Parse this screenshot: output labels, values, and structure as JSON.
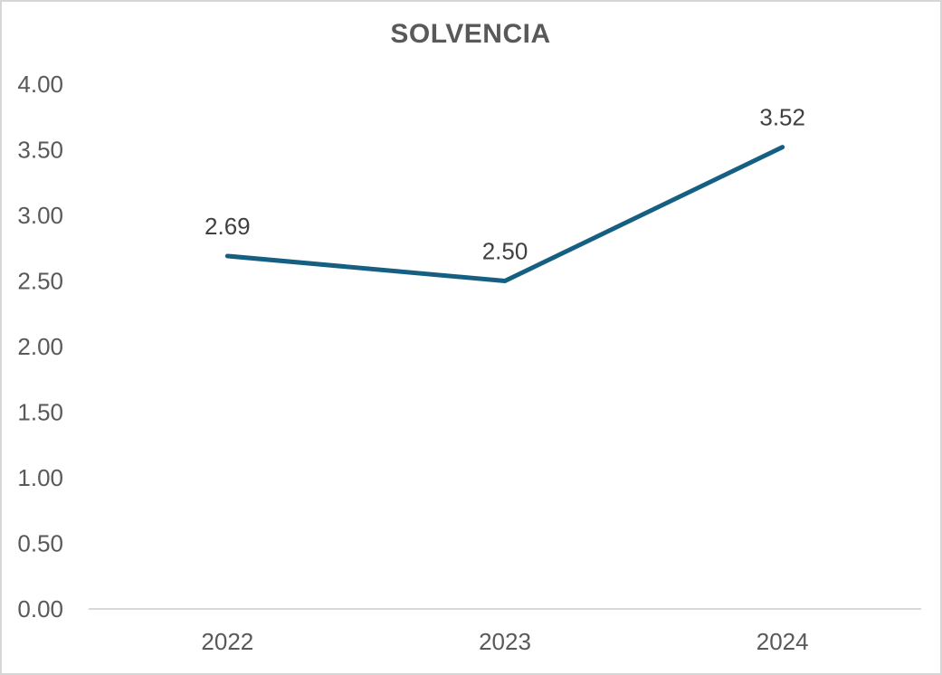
{
  "chart_data": {
    "type": "line",
    "title": "SOLVENCIA",
    "categories": [
      "2022",
      "2023",
      "2024"
    ],
    "series": [
      {
        "name": "SOLVENCIA",
        "values": [
          2.69,
          2.5,
          3.52
        ]
      }
    ],
    "data_labels": [
      "2.69",
      "2.50",
      "3.52"
    ],
    "y_ticks": [
      "4.00",
      "3.50",
      "3.00",
      "2.50",
      "2.00",
      "1.50",
      "1.00",
      "0.50",
      "0.00"
    ],
    "ylim": [
      0,
      4
    ],
    "y_step": 0.5,
    "xlabel": "",
    "ylabel": "",
    "grid": "off",
    "legend": "none",
    "markers": "none",
    "colors": {
      "line": "#156082",
      "axis_line": "#d9d9d9",
      "tick_text": "#595959",
      "data_label_text": "#404040",
      "title_text": "#595959",
      "background": "#ffffff",
      "frame_border": "#d6d6d6"
    }
  }
}
